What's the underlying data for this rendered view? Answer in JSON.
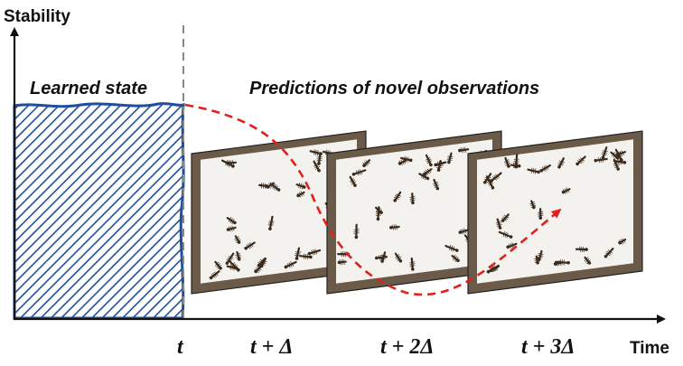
{
  "axes": {
    "y_label": "Stability",
    "x_label": "Time"
  },
  "labels": {
    "learned_state": "Learned state",
    "predictions": "Predictions of novel observations"
  },
  "ticks": [
    "t",
    "t + Δ",
    "t + 2Δ",
    "t + 3Δ"
  ],
  "frames": [
    {
      "name": "observation-frame-1",
      "seed": 11
    },
    {
      "name": "observation-frame-2",
      "seed": 29
    },
    {
      "name": "observation-frame-3",
      "seed": 47
    }
  ],
  "colors": {
    "hatch": "#1f4e9c",
    "prediction_curve": "#e0201b",
    "divider": "#888888",
    "axis": "#111111",
    "ant": "#3a2a1c"
  }
}
